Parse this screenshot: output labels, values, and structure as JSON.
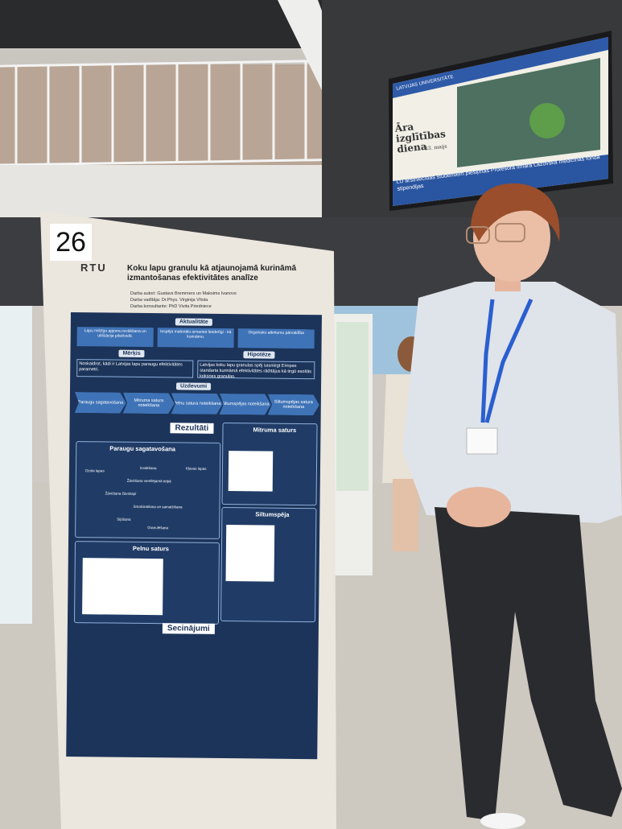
{
  "board_number": "26",
  "poster": {
    "logo": "RTU",
    "title": "Koku lapu granulu kā atjaunojamā kurināmā izmantošanas efektivitātes analīze",
    "credits": [
      "Darba autori: Gustavs Bremmers un Maksims Ivanovs",
      "Darba vadītāja: Dr.Phys. Virginija Vītola",
      "Darba konsultante: PhD Vivita Priedniece"
    ],
    "sections": {
      "relevance": "Aktualitāte",
      "aim": "Mērķis",
      "hypothesis": "Hipotēze",
      "tasks": "Uzdevumi",
      "results": "Rezultāti",
      "conclusions": "Secinājumi"
    },
    "relevance_items": [
      "Lapu milzīgo apjomu ievākšana un utilizācija pilsētvidē.",
      "Iespēja materiālu izmantot lietderīgi - kā kurināmo.",
      "Organisko atkritumu pārvaldība"
    ],
    "aim_text": "Noskaidrot, kādi ir Latvijas lapu paraugu efektivitātes parametri.",
    "hypothesis_text": "Latvijas koku lapu granulas spēj sasniegt Eiropas standarta kurināmā efektivitātes rādītājus kā tirgū esošās koksnes granulas.",
    "tasks": [
      "Paraugu sagatavošana",
      "Mitruma satura noteikšana",
      "Pelnu satura noteikšana",
      "Siltumspējas noteikšana",
      "Siltumspējas satura noteikšana"
    ],
    "panels": [
      "Paraugu sagatavošana",
      "Mitruma saturs",
      "Pelnu saturs",
      "Siltumspēja"
    ],
    "flow": [
      "Ozola lapas",
      "Kļavas lapas",
      "Ievākšana",
      "Žāvēšana ventilējamā telpā",
      "Žāvēšana žāvskapī",
      "Smalcināšana un samaišīšana",
      "Sijāšana",
      "Granulēšana"
    ]
  },
  "screen": {
    "brand": "LATVIJAS UNIVERSITĀTE",
    "event": "Āra izglītības diena",
    "date": "23. maijs",
    "ticker": "LU ārstniecības studentiem piešķirtas Profesora Ilmāra Lazovska medicīnas fonda stipendijas"
  }
}
